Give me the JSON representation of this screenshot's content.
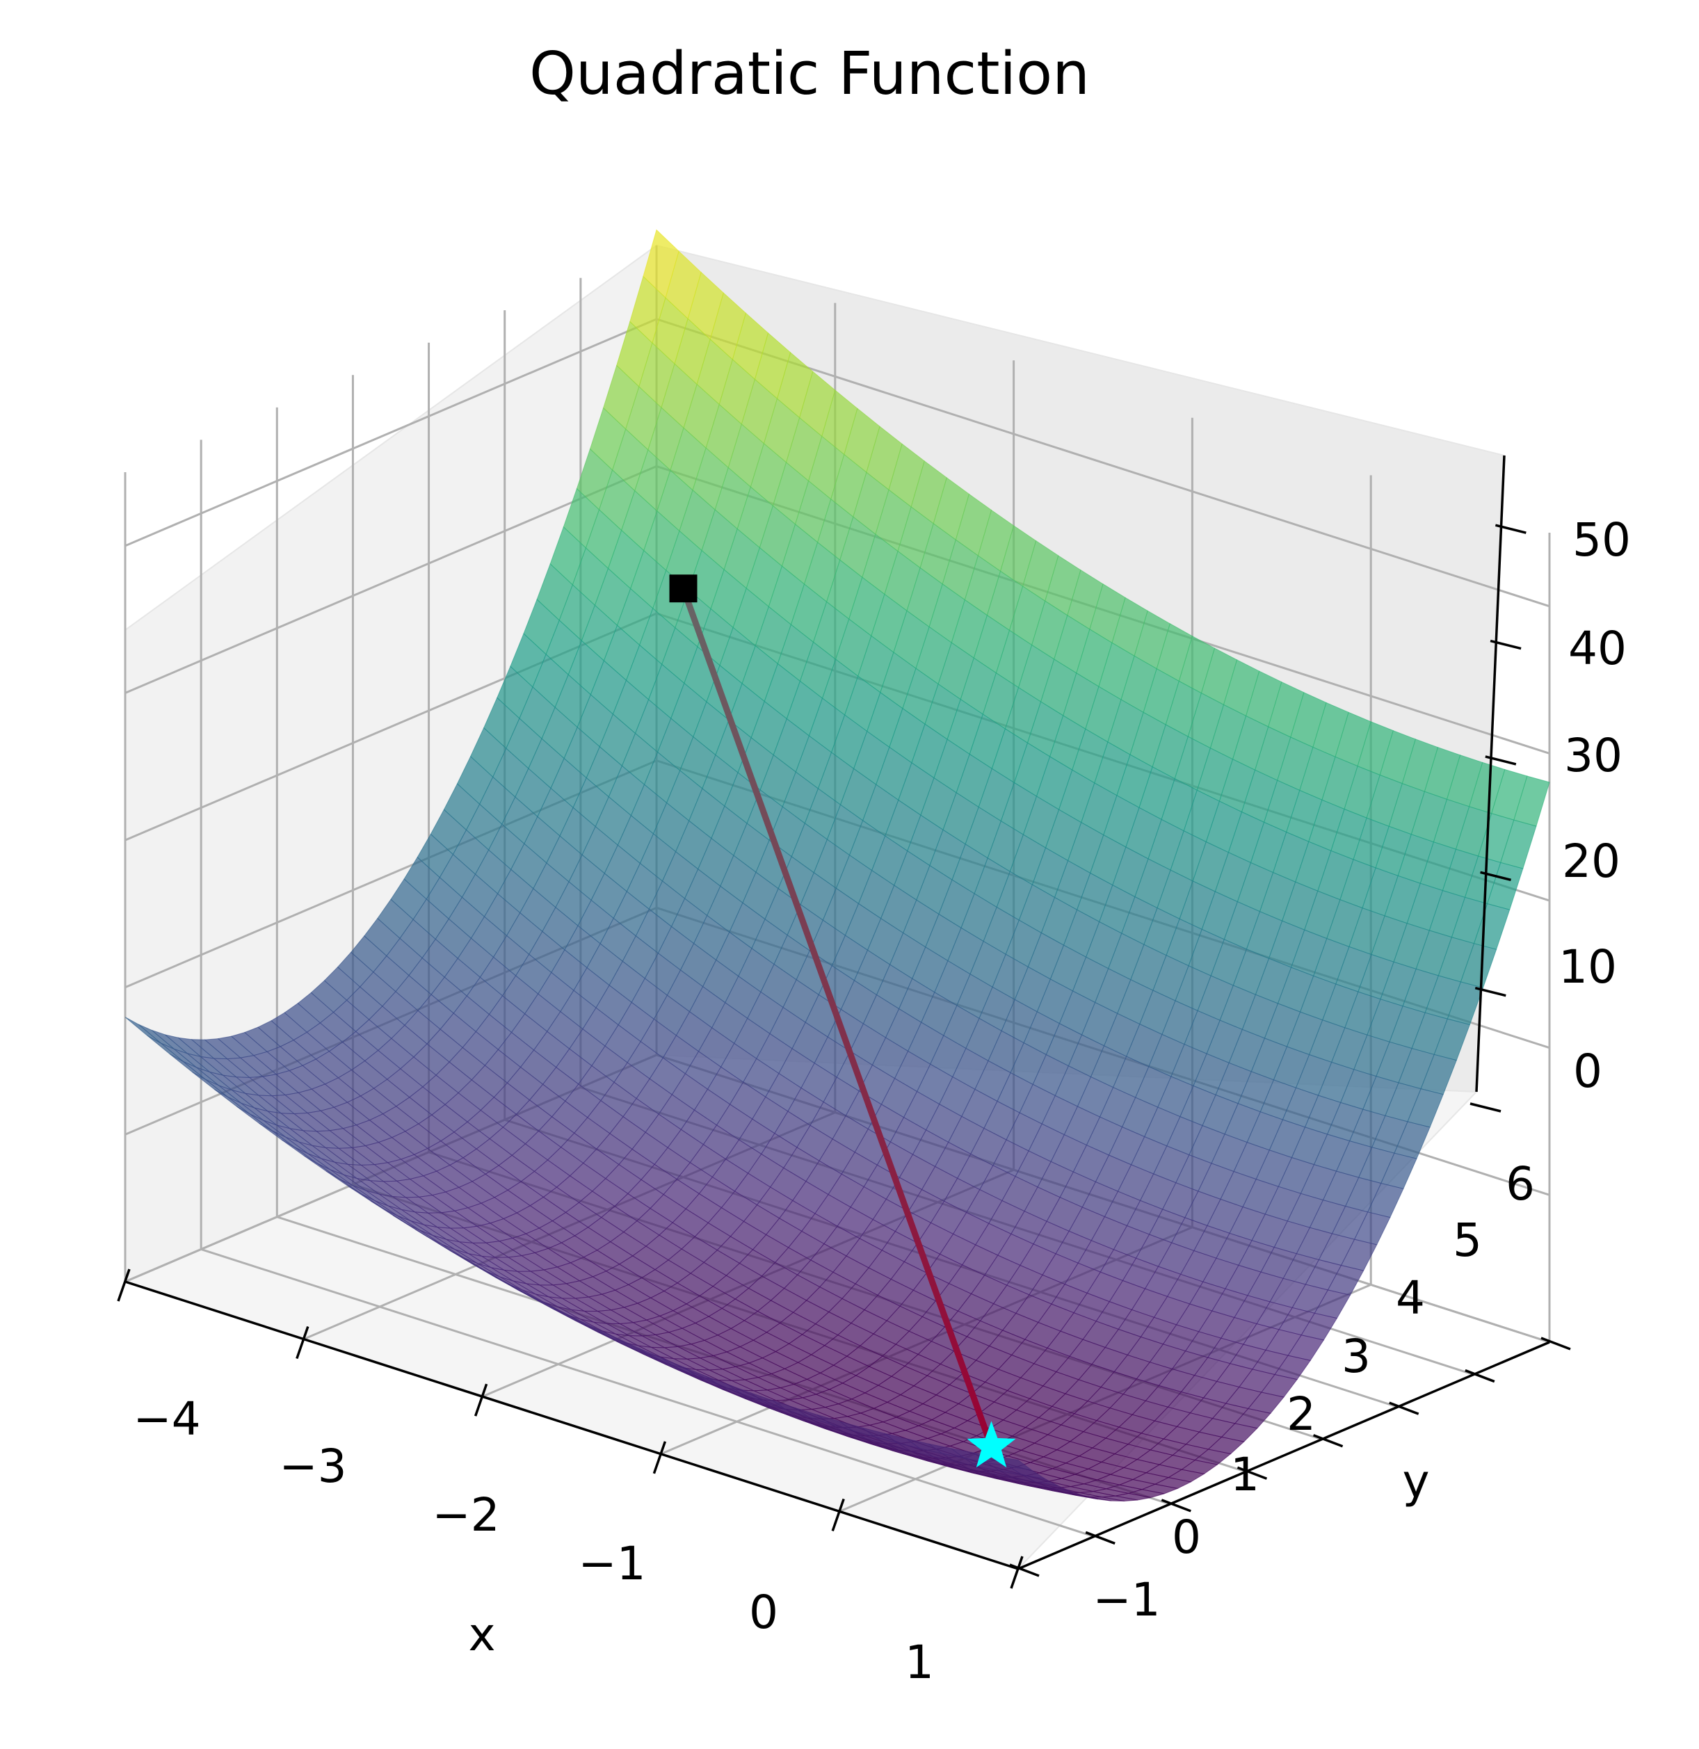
{
  "chart_data": {
    "type": "surface3d",
    "title": "Quadratic Function",
    "xlabel": "x",
    "ylabel": "y",
    "zlabel": "",
    "xlim": [
      -4,
      1
    ],
    "ylim": [
      -1,
      6
    ],
    "zlim": [
      0,
      55
    ],
    "x_ticks": [
      -4,
      -3,
      -2,
      -1,
      0,
      1
    ],
    "y_ticks": [
      -1,
      0,
      1,
      2,
      3,
      4,
      5,
      6
    ],
    "z_ticks": [
      0,
      10,
      20,
      30,
      40,
      50
    ],
    "x_tick_labels": [
      "−4",
      "−3",
      "−2",
      "−1",
      "0",
      "1"
    ],
    "y_tick_labels": [
      "−1",
      "0",
      "1",
      "2",
      "3",
      "4",
      "5",
      "6"
    ],
    "z_tick_labels": [
      "0",
      "10",
      "20",
      "30",
      "40",
      "50"
    ],
    "grid": true,
    "colormap": "viridis",
    "surface_alpha": 0.7,
    "surface": {
      "x_range": [
        -4,
        1
      ],
      "y_range": [
        -1,
        6
      ],
      "corners": [
        {
          "x": -4,
          "y": -1,
          "z": 18
        },
        {
          "x": 1,
          "y": -1,
          "z": 8
        },
        {
          "x": 1,
          "y": 6,
          "z": 38
        },
        {
          "x": -4,
          "y": 6,
          "z": 56
        }
      ],
      "minimum": {
        "x": 0,
        "y": 1,
        "z": 0
      }
    },
    "path": {
      "color_start": "#666666",
      "color_end": "#990033",
      "points": [
        {
          "x": -3,
          "y": 4,
          "z": 40
        },
        {
          "x": 0,
          "y": 1,
          "z": 0
        }
      ]
    },
    "start_marker": {
      "shape": "square",
      "color": "#000000",
      "x": -3,
      "y": 4,
      "z": 40
    },
    "end_marker": {
      "shape": "star",
      "color": "#00ffff",
      "x": 0,
      "y": 1,
      "z": 0
    }
  }
}
